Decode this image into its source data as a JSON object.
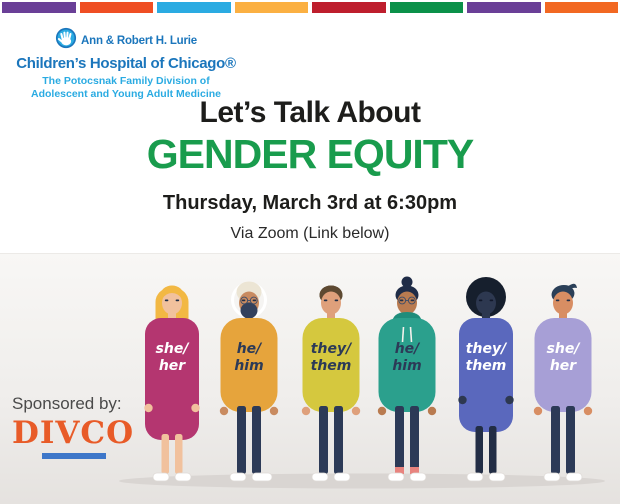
{
  "stripe_colors": [
    "#6a3f97",
    "#ef4e23",
    "#2aabe2",
    "#fbb042",
    "#be1e2d",
    "#0b9149",
    "#6a3f97",
    "#f26822"
  ],
  "logo": {
    "line1": "Ann & Robert H. Lurie",
    "line2": "Children’s Hospital of Chicago®",
    "line3": "The Potocsnak Family Division of",
    "line4": "Adolescent and Young Adult Medicine",
    "primary_color": "#1b76bc",
    "secondary_color": "#2aabe2"
  },
  "title": {
    "line1": "Let’s Talk About",
    "line2": "GENDER EQUITY",
    "accent_color": "#199c4d"
  },
  "event": {
    "datetime": "Thursday, March 3rd at 6:30pm",
    "location": "Via Zoom (Link below)"
  },
  "sponsor": {
    "label": "Sponsored by:",
    "name": "DIVCO",
    "name_color": "#e85b28",
    "underline_color": "#3d77c9"
  },
  "illustration": {
    "shadow_color": "#d9d5d2",
    "people": [
      {
        "pronouns": [
          "she/",
          "her"
        ],
        "hairstyle": "long",
        "hair": "#f2b843",
        "skin": "#f1c19d",
        "top": "#b43670",
        "top_style": "dress",
        "hem": 186,
        "text_color": "#ffffff",
        "legs": "#f1c19d",
        "shoes": "#ffffff"
      },
      {
        "pronouns": [
          "he/",
          "him"
        ],
        "hairstyle": "turban",
        "hair": "#ece5d4",
        "skin": "#c98b60",
        "beard": "#33415c",
        "glasses": true,
        "top": "#e6a43c",
        "top_style": "sweater",
        "text_color": "#2c3a57",
        "legs": "#2c3a57",
        "shoes": "#ffffff",
        "side_shoe": true
      },
      {
        "pronouns": [
          "they/",
          "them"
        ],
        "hairstyle": "short",
        "hair": "#5d4931",
        "skin": "#dfa07b",
        "top": "#d5c83e",
        "top_style": "sweater",
        "text_color": "#2c3a57",
        "legs": "#2c3a57",
        "shoes": "#ffffff"
      },
      {
        "pronouns": [
          "he/",
          "him"
        ],
        "hairstyle": "bun",
        "hair": "#1f2c47",
        "skin": "#b97b50",
        "glasses": true,
        "top": "#2ba08d",
        "hood": "#1f8d7b",
        "top_style": "hoodie",
        "text_color": "#2c3a57",
        "legs": "#2c3a57",
        "socks": "#e8837e",
        "shoes": "#ffffff"
      },
      {
        "pronouns": [
          "they/",
          "them"
        ],
        "hairstyle": "afro",
        "hair": "#161f2d",
        "skin": "#2d3850",
        "eye": "#11182a",
        "top": "#5a68bd",
        "top_style": "dress",
        "hem": 178,
        "text_color": "#ffffff",
        "legs": "#222d45",
        "shoes": "#ffffff"
      },
      {
        "pronouns": [
          "she/",
          "her"
        ],
        "hairstyle": "quiff",
        "hair": "#2b4058",
        "skin": "#d88e63",
        "top": "#a79fd6",
        "top_style": "sweater",
        "text_color": "#ffffff",
        "legs": "#2c3a57",
        "shoes": "#ffffff"
      }
    ]
  }
}
